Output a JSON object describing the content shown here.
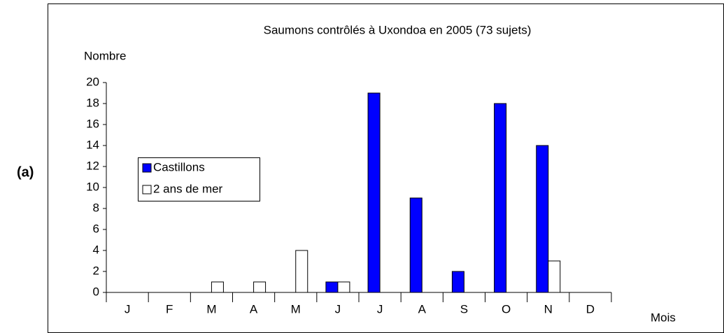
{
  "chart_data": {
    "type": "bar",
    "panel_label": "(a)",
    "title": "Saumons contrôlés à Uxondoa en 2005 (73 sujets)",
    "y_label": "Nombre",
    "x_label": "Mois",
    "categories": [
      "J",
      "F",
      "M",
      "A",
      "M",
      "J",
      "J",
      "A",
      "S",
      "O",
      "N",
      "D"
    ],
    "series": [
      {
        "name": "Castillons",
        "color": "#0000ff",
        "values": [
          0,
          0,
          0,
          0,
          0,
          1,
          19,
          9,
          2,
          18,
          14,
          0
        ]
      },
      {
        "name": "2 ans de mer",
        "color": "#ffffff",
        "values": [
          0,
          0,
          1,
          1,
          4,
          1,
          0,
          0,
          0,
          0,
          3,
          0
        ]
      }
    ],
    "ylim": [
      0,
      20
    ],
    "yticks": [
      0,
      2,
      4,
      6,
      8,
      10,
      12,
      14,
      16,
      18,
      20
    ],
    "grid": false,
    "legend": "left"
  }
}
